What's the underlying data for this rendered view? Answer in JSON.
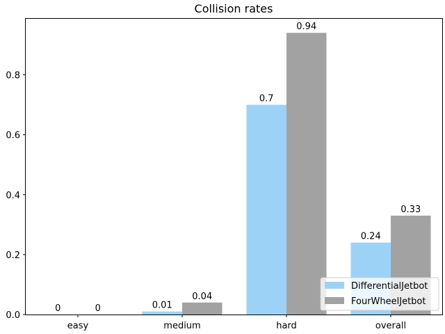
{
  "chart_data": {
    "type": "bar",
    "title": "Collision rates",
    "xlabel": "",
    "ylabel": "",
    "categories": [
      "easy",
      "medium",
      "hard",
      "overall"
    ],
    "series": [
      {
        "name": "DifferentialJetbot",
        "values": [
          0,
          0.01,
          0.7,
          0.24
        ],
        "labels": [
          "0",
          "0.01",
          "0.7",
          "0.24"
        ],
        "color": "#9dd2f7"
      },
      {
        "name": "FourWheelJetbot",
        "values": [
          0,
          0.04,
          0.94,
          0.33
        ],
        "labels": [
          "0",
          "0.04",
          "0.94",
          "0.33"
        ],
        "color": "#a2a2a2"
      }
    ],
    "ylim": [
      0,
      0.987
    ],
    "yticks": [
      0.0,
      0.2,
      0.4,
      0.6,
      0.8
    ],
    "ytick_labels": [
      "0.0",
      "0.2",
      "0.4",
      "0.6",
      "0.8"
    ],
    "grid": false,
    "legend_position": "lower-right"
  }
}
